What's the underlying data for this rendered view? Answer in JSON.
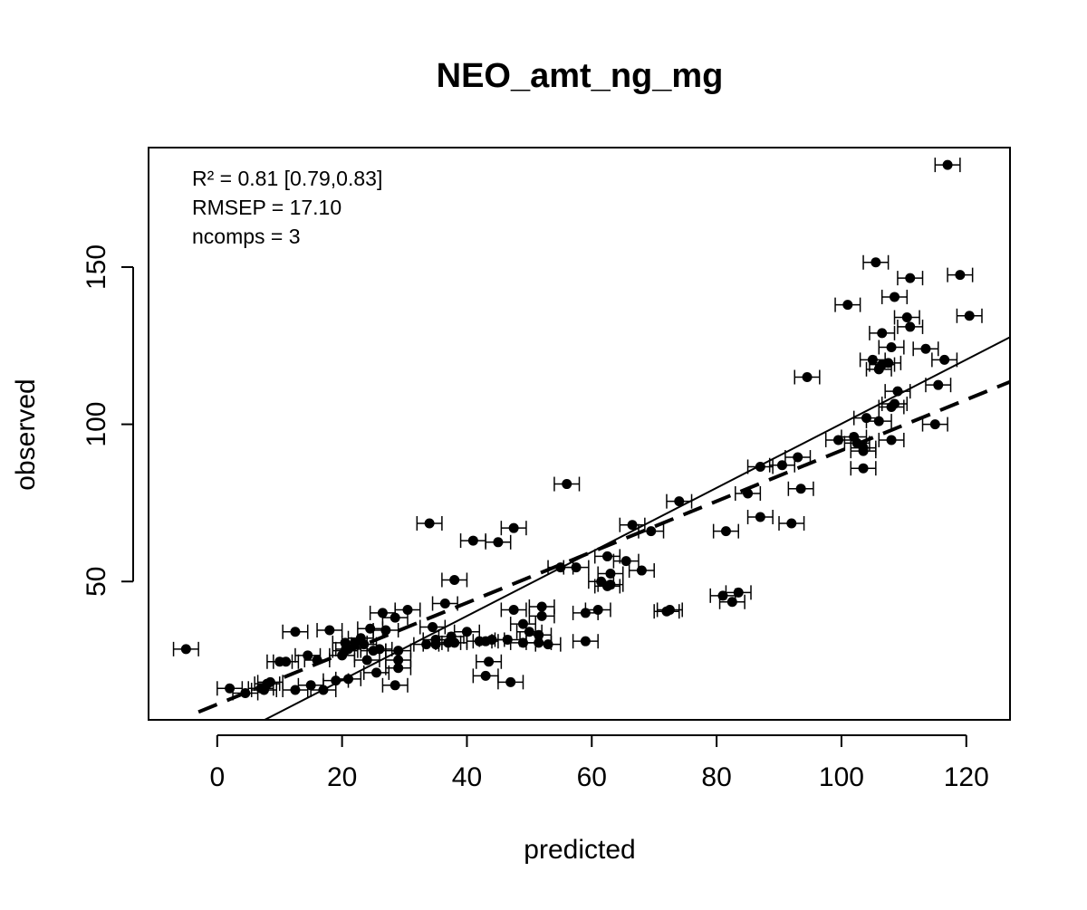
{
  "chart_data": {
    "type": "scatter",
    "title": "NEO_amt_ng_mg",
    "xlabel": "predicted",
    "ylabel": "observed",
    "xlim": [
      -11,
      127
    ],
    "ylim": [
      6,
      188
    ],
    "xticks": [
      0,
      20,
      40,
      60,
      80,
      100,
      120
    ],
    "yticks": [
      50,
      100,
      150
    ],
    "grid": false,
    "annotations": [
      "R² = 0.81 [0.79,0.83]",
      "RMSEP = 17.10",
      "ncomps = 3"
    ],
    "error_bar_halfwidth": 2,
    "lines": [
      {
        "style": "solid",
        "x": [
          7.6,
          127
        ],
        "y": [
          6,
          127.7
        ]
      },
      {
        "style": "dashed",
        "x": [
          -3,
          127
        ],
        "y": [
          8.5,
          113.5
        ]
      }
    ],
    "points": [
      [
        -5,
        28.5
      ],
      [
        2,
        16
      ],
      [
        4.5,
        14.5
      ],
      [
        7,
        16
      ],
      [
        7.5,
        15.5
      ],
      [
        8,
        17.5
      ],
      [
        8.5,
        18
      ],
      [
        10,
        24.5
      ],
      [
        11,
        24.5
      ],
      [
        12.5,
        34
      ],
      [
        12.5,
        15.5
      ],
      [
        14.5,
        26.5
      ],
      [
        15,
        17
      ],
      [
        16,
        25
      ],
      [
        17,
        15.5
      ],
      [
        18,
        34.5
      ],
      [
        19,
        18.5
      ],
      [
        20,
        26.5
      ],
      [
        20.5,
        30.5
      ],
      [
        20.5,
        28
      ],
      [
        21,
        19
      ],
      [
        21,
        28.5
      ],
      [
        22,
        30.5
      ],
      [
        23,
        32
      ],
      [
        23.5,
        30
      ],
      [
        24,
        25
      ],
      [
        24.5,
        35
      ],
      [
        25,
        28
      ],
      [
        25.5,
        21
      ],
      [
        26,
        28.5
      ],
      [
        26.5,
        40
      ],
      [
        27,
        34.5
      ],
      [
        28.5,
        17
      ],
      [
        28.5,
        38.5
      ],
      [
        29,
        28
      ],
      [
        29,
        25
      ],
      [
        29,
        22.5
      ],
      [
        30.5,
        41
      ],
      [
        33.5,
        30
      ],
      [
        34,
        68.5
      ],
      [
        34.5,
        35.5
      ],
      [
        35,
        31.5
      ],
      [
        35,
        30
      ],
      [
        36.5,
        43
      ],
      [
        37,
        30.5
      ],
      [
        37.5,
        32.5
      ],
      [
        38,
        30.5
      ],
      [
        38,
        50.5
      ],
      [
        40,
        34
      ],
      [
        41,
        63
      ],
      [
        42,
        31
      ],
      [
        43,
        20
      ],
      [
        43,
        31
      ],
      [
        43.5,
        24.5
      ],
      [
        44,
        31.5
      ],
      [
        45,
        62.5
      ],
      [
        46.5,
        31.5
      ],
      [
        47,
        18
      ],
      [
        47.5,
        67
      ],
      [
        47.5,
        41
      ],
      [
        49,
        36.5
      ],
      [
        49,
        30.5
      ],
      [
        50,
        34
      ],
      [
        51.5,
        33
      ],
      [
        51.5,
        30.5
      ],
      [
        52,
        42
      ],
      [
        52,
        39
      ],
      [
        53,
        30
      ],
      [
        55,
        54.5
      ],
      [
        56,
        81
      ],
      [
        57.5,
        54.5
      ],
      [
        59,
        40
      ],
      [
        59,
        31
      ],
      [
        61,
        41
      ],
      [
        61.5,
        50
      ],
      [
        62.5,
        58
      ],
      [
        62.5,
        48.5
      ],
      [
        63,
        49
      ],
      [
        63,
        52.5
      ],
      [
        65.5,
        56.5
      ],
      [
        66.5,
        68
      ],
      [
        68,
        53.5
      ],
      [
        69.5,
        66
      ],
      [
        72,
        40.5
      ],
      [
        72.5,
        41
      ],
      [
        74,
        75.5
      ],
      [
        81,
        45.5
      ],
      [
        81.5,
        66
      ],
      [
        82.5,
        43.5
      ],
      [
        83.5,
        46.5
      ],
      [
        85,
        78
      ],
      [
        87,
        70.5
      ],
      [
        87,
        86.5
      ],
      [
        90.5,
        87
      ],
      [
        92,
        68.5
      ],
      [
        93,
        89.5
      ],
      [
        93.5,
        79.5
      ],
      [
        94.5,
        115
      ],
      [
        99.5,
        95
      ],
      [
        101,
        138
      ],
      [
        102,
        96
      ],
      [
        102.5,
        94
      ],
      [
        103.5,
        86
      ],
      [
        103.5,
        91.5
      ],
      [
        103.5,
        92.5
      ],
      [
        104,
        102
      ],
      [
        105,
        120.5
      ],
      [
        105.5,
        151.5
      ],
      [
        106,
        101
      ],
      [
        106,
        117.5
      ],
      [
        106.5,
        119
      ],
      [
        106.5,
        129
      ],
      [
        107.5,
        119.5
      ],
      [
        108,
        124.5
      ],
      [
        108,
        95
      ],
      [
        108,
        105.5
      ],
      [
        108.5,
        106.5
      ],
      [
        108.5,
        140.5
      ],
      [
        109,
        110.5
      ],
      [
        110.5,
        134
      ],
      [
        111,
        146.5
      ],
      [
        111,
        131
      ],
      [
        113.5,
        124
      ],
      [
        115,
        100
      ],
      [
        115.5,
        112.5
      ],
      [
        116.5,
        120.5
      ],
      [
        117,
        182.5
      ],
      [
        119,
        147.5
      ],
      [
        120.5,
        134.5
      ]
    ]
  }
}
